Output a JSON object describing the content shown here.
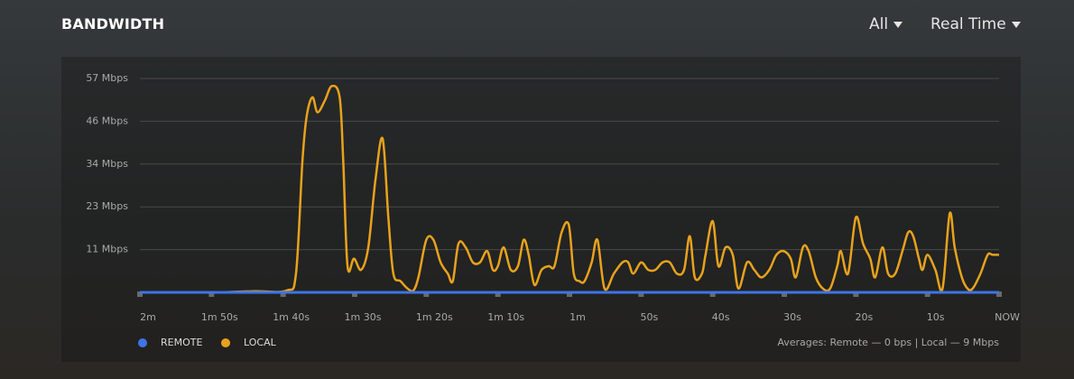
{
  "chart_data": {
    "type": "line",
    "title": "BANDWIDTH",
    "controls": [
      "All",
      "Real Time"
    ],
    "annotation": "Averages: Remote — 0 bps | Local — 9 Mbps",
    "xlim": [
      -120,
      0
    ],
    "xticks": [
      {
        "value": -120,
        "label": "2m"
      },
      {
        "value": -110,
        "label": "1m 50s"
      },
      {
        "value": -100,
        "label": "1m 40s"
      },
      {
        "value": -90,
        "label": "1m 30s"
      },
      {
        "value": -80,
        "label": "1m 20s"
      },
      {
        "value": -70,
        "label": "1m 10s"
      },
      {
        "value": -60,
        "label": "1m"
      },
      {
        "value": -50,
        "label": "50s"
      },
      {
        "value": -40,
        "label": "40s"
      },
      {
        "value": -30,
        "label": "30s"
      },
      {
        "value": -20,
        "label": "20s"
      },
      {
        "value": -10,
        "label": "10s"
      },
      {
        "value": 0,
        "label": "NOW"
      }
    ],
    "ylim": [
      0,
      57
    ],
    "yticks": [
      {
        "value": 11.4,
        "label": "11 Mbps"
      },
      {
        "value": 22.8,
        "label": "23 Mbps"
      },
      {
        "value": 34.2,
        "label": "34 Mbps"
      },
      {
        "value": 45.6,
        "label": "46 Mbps"
      },
      {
        "value": 57,
        "label": "57 Mbps"
      }
    ],
    "grid": true,
    "series": [
      {
        "name": "REMOTE",
        "color": "#3d74e8",
        "x": [
          -120,
          0
        ],
        "values": [
          0,
          0
        ]
      },
      {
        "name": "LOCAL",
        "color": "#e8a21c",
        "x": [
          -120,
          -110,
          -104,
          -99.5,
          -98.2,
          -97.3,
          -96.7,
          -95.9,
          -95.2,
          -94.2,
          -93.2,
          -92.1,
          -91.6,
          -91.0,
          -90.1,
          -89.1,
          -88.1,
          -87.1,
          -86.1,
          -85.3,
          -84.6,
          -83.6,
          -82.6,
          -81.8,
          -81.1,
          -80.0,
          -79.0,
          -78.0,
          -77.0,
          -76.3,
          -75.5,
          -74.5,
          -73.5,
          -72.5,
          -71.5,
          -70.7,
          -70.0,
          -69.2,
          -68.2,
          -67.2,
          -66.4,
          -65.7,
          -64.9,
          -63.9,
          -62.9,
          -62.1,
          -61.1,
          -60.1,
          -59.4,
          -58.6,
          -57.9,
          -56.9,
          -56.1,
          -55.1,
          -53.8,
          -52.6,
          -51.8,
          -51.1,
          -50.0,
          -49.0,
          -48.0,
          -47.0,
          -46.0,
          -45.0,
          -44.0,
          -43.2,
          -42.5,
          -41.5,
          -41.0,
          -40.0,
          -39.2,
          -38.2,
          -37.2,
          -36.4,
          -35.2,
          -34.2,
          -33.2,
          -32.1,
          -31.1,
          -30.1,
          -29.1,
          -28.4,
          -27.4,
          -26.6,
          -25.6,
          -24.6,
          -23.6,
          -22.6,
          -22.1,
          -21.1,
          -20.0,
          -19.0,
          -18.0,
          -17.3,
          -16.3,
          -15.5,
          -14.5,
          -13.5,
          -12.7,
          -12.0,
          -11.2,
          -10.7,
          -10.0,
          -8.9,
          -7.9,
          -6.9,
          -6.2,
          -5.2,
          -4.4,
          -3.7,
          -2.6,
          -1.6,
          -0.9,
          0
        ],
        "values": [
          0,
          0,
          0.3,
          0.5,
          5,
          35,
          47,
          52,
          48,
          51,
          55,
          52,
          35,
          7,
          9,
          6,
          12,
          30,
          41,
          20,
          5,
          3,
          1,
          0.5,
          4,
          14,
          14,
          8,
          5,
          3,
          13,
          12,
          8,
          8,
          11,
          6,
          7,
          12,
          6,
          7,
          14,
          10,
          2,
          6,
          7,
          7,
          16,
          18,
          5,
          3,
          3,
          8,
          14,
          1,
          5,
          8,
          8,
          5,
          8,
          6,
          6,
          8,
          8,
          5,
          6,
          15,
          4,
          5,
          10,
          19,
          7,
          12,
          10,
          1,
          8,
          6,
          4,
          6,
          10,
          11,
          9,
          4,
          12,
          11,
          4,
          1,
          1,
          7,
          11,
          5,
          20,
          13,
          9,
          4,
          12,
          5,
          5,
          11,
          16,
          15,
          9,
          6,
          10,
          6,
          1,
          21,
          12,
          4,
          1,
          1,
          5,
          10,
          10,
          10
        ]
      }
    ]
  }
}
